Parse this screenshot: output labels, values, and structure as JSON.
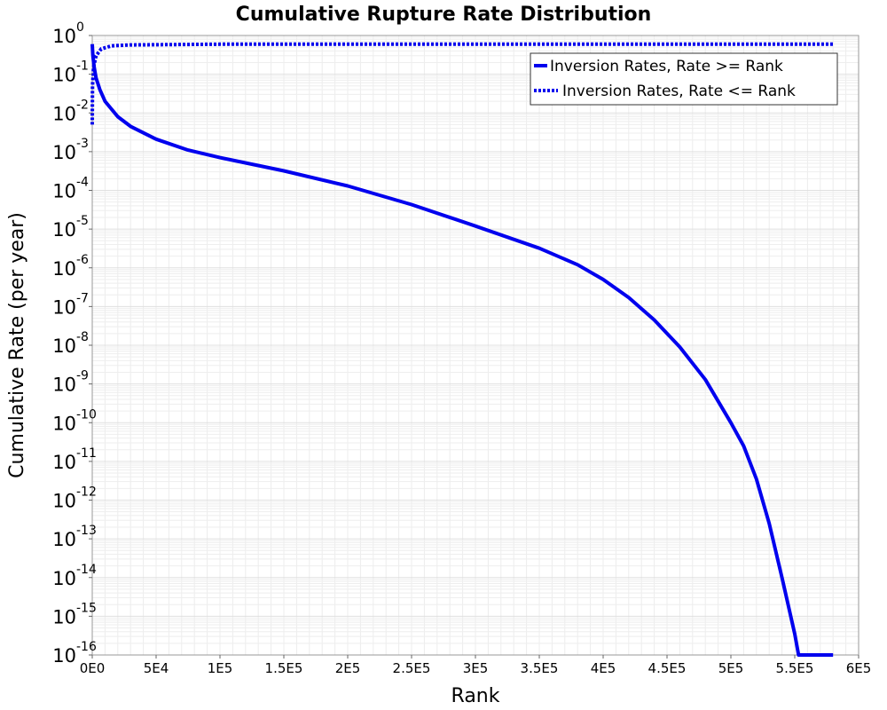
{
  "chart_data": {
    "type": "line",
    "title": "Cumulative Rupture Rate Distribution",
    "xlabel": "Rank",
    "ylabel": "Cumulative Rate (per year)",
    "xlim": [
      0,
      600000
    ],
    "ylim": [
      1e-16,
      1
    ],
    "yscale": "log",
    "grid": true,
    "legend_position": "top-right",
    "x_ticks": [
      {
        "value": 0,
        "label": "0E0"
      },
      {
        "value": 50000,
        "label": "5E4"
      },
      {
        "value": 100000,
        "label": "1E5"
      },
      {
        "value": 150000,
        "label": "1.5E5"
      },
      {
        "value": 200000,
        "label": "2E5"
      },
      {
        "value": 250000,
        "label": "2.5E5"
      },
      {
        "value": 300000,
        "label": "3E5"
      },
      {
        "value": 350000,
        "label": "3.5E5"
      },
      {
        "value": 400000,
        "label": "4E5"
      },
      {
        "value": 450000,
        "label": "4.5E5"
      },
      {
        "value": 500000,
        "label": "5E5"
      },
      {
        "value": 550000,
        "label": "5.5E5"
      },
      {
        "value": 600000,
        "label": "6E5"
      }
    ],
    "y_ticks": [
      {
        "value": 1,
        "base": "10",
        "exp": "0"
      },
      {
        "value": 0.1,
        "base": "10",
        "exp": "-1"
      },
      {
        "value": 0.01,
        "base": "10",
        "exp": "-2"
      },
      {
        "value": 0.001,
        "base": "10",
        "exp": "-3"
      },
      {
        "value": 0.0001,
        "base": "10",
        "exp": "-4"
      },
      {
        "value": 1e-05,
        "base": "10",
        "exp": "-5"
      },
      {
        "value": 1e-06,
        "base": "10",
        "exp": "-6"
      },
      {
        "value": 1e-07,
        "base": "10",
        "exp": "-7"
      },
      {
        "value": 1e-08,
        "base": "10",
        "exp": "-8"
      },
      {
        "value": 1e-09,
        "base": "10",
        "exp": "-9"
      },
      {
        "value": 1e-10,
        "base": "10",
        "exp": "-10"
      },
      {
        "value": 1e-11,
        "base": "10",
        "exp": "-11"
      },
      {
        "value": 1e-12,
        "base": "10",
        "exp": "-12"
      },
      {
        "value": 1e-13,
        "base": "10",
        "exp": "-13"
      },
      {
        "value": 1e-14,
        "base": "10",
        "exp": "-14"
      },
      {
        "value": 1e-15,
        "base": "10",
        "exp": "-15"
      },
      {
        "value": 1e-16,
        "base": "10",
        "exp": "-16"
      }
    ],
    "series": [
      {
        "name": "Inversion Rates, Rate >= Rank",
        "color": "#0000ee",
        "style": "solid",
        "points": [
          [
            0,
            0.6
          ],
          [
            500,
            0.3
          ],
          [
            1500,
            0.15
          ],
          [
            3000,
            0.08
          ],
          [
            6000,
            0.04
          ],
          [
            10000,
            0.02
          ],
          [
            20000,
            0.008
          ],
          [
            30000,
            0.0045
          ],
          [
            50000,
            0.0021
          ],
          [
            75000,
            0.0011
          ],
          [
            100000,
            0.0007
          ],
          [
            150000,
            0.00032
          ],
          [
            200000,
            0.00013
          ],
          [
            250000,
            4.3e-05
          ],
          [
            300000,
            1.2e-05
          ],
          [
            350000,
            3.2e-06
          ],
          [
            380000,
            1.2e-06
          ],
          [
            400000,
            5e-07
          ],
          [
            420000,
            1.7e-07
          ],
          [
            440000,
            4.5e-08
          ],
          [
            460000,
            9e-09
          ],
          [
            480000,
            1.3e-09
          ],
          [
            500000,
            1e-10
          ],
          [
            510000,
            2.5e-11
          ],
          [
            520000,
            3.5e-12
          ],
          [
            530000,
            2.5e-13
          ],
          [
            540000,
            1e-14
          ],
          [
            550000,
            3.5e-16
          ],
          [
            553000,
            1e-16
          ],
          [
            580000,
            1e-16
          ]
        ]
      },
      {
        "name": "Inversion Rates, Rate <= Rank",
        "color": "#0000ee",
        "style": "dotted",
        "points": [
          [
            0,
            0.005
          ],
          [
            200,
            0.05
          ],
          [
            1000,
            0.15
          ],
          [
            3000,
            0.3
          ],
          [
            7000,
            0.45
          ],
          [
            15000,
            0.54
          ],
          [
            30000,
            0.57
          ],
          [
            100000,
            0.595
          ],
          [
            300000,
            0.6
          ],
          [
            580000,
            0.6
          ]
        ]
      }
    ]
  }
}
